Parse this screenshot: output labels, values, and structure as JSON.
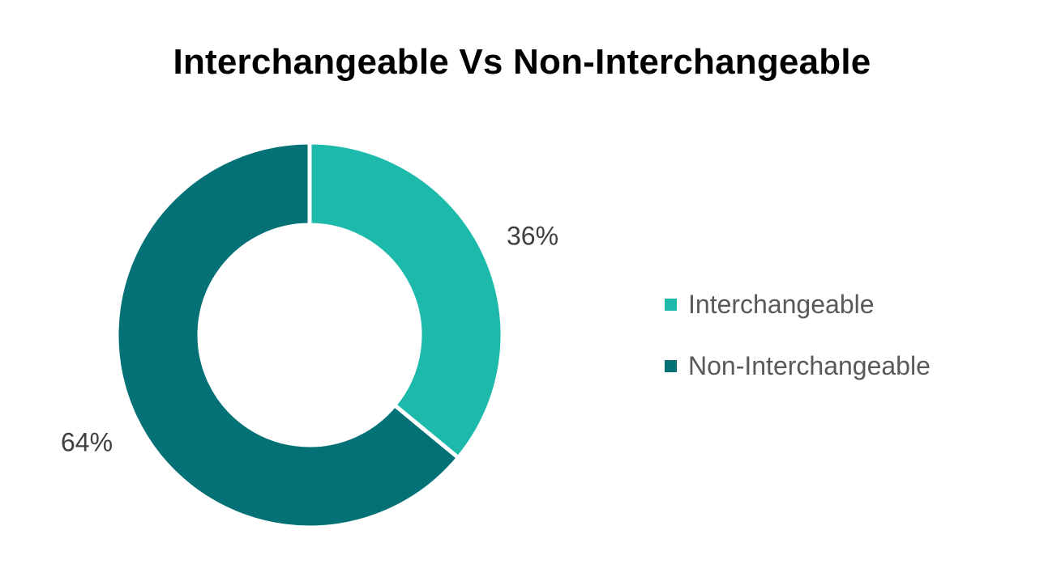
{
  "chart_data": {
    "type": "pie",
    "variant": "donut",
    "title": "Interchangeable Vs Non-Interchangeable",
    "categories": [
      "Interchangeable",
      "Non-Interchangeable"
    ],
    "values": [
      36,
      64
    ],
    "data_labels": [
      "36%",
      "64%"
    ],
    "colors": [
      "#1dbaab",
      "#037176"
    ],
    "legend_position": "right",
    "grid": false
  }
}
